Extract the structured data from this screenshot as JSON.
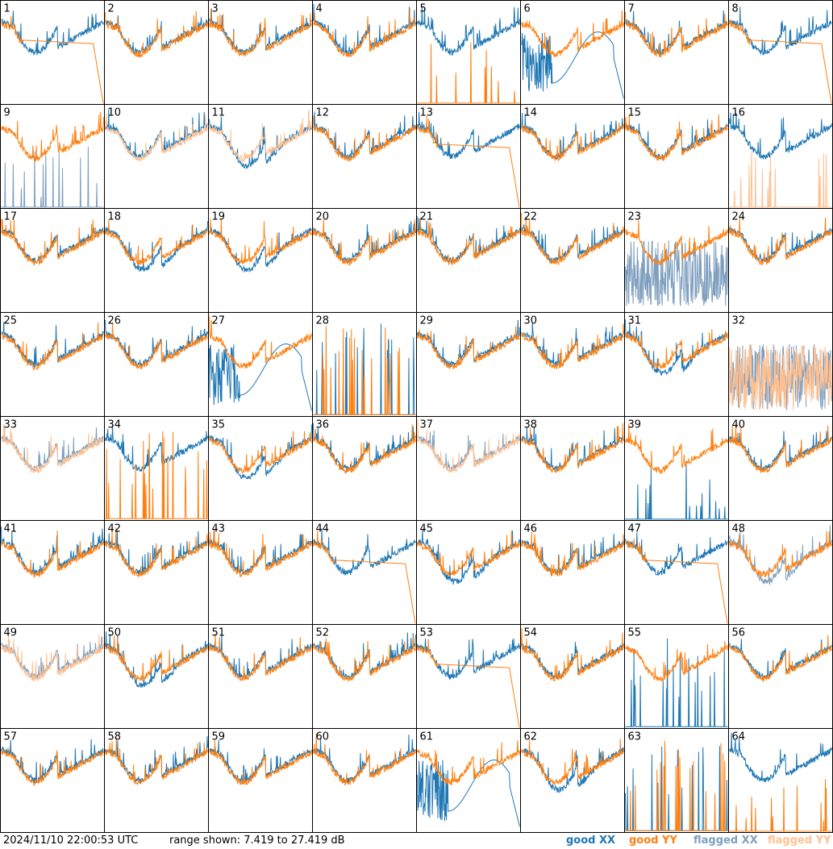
{
  "chart_data": {
    "type": "line",
    "title": "",
    "xlabel": "",
    "ylabel": "",
    "ylim": [
      7.419,
      27.419
    ],
    "grid": "8x8 small multiples",
    "panel_count": 64,
    "panels": [
      {
        "id": "1",
        "xx": "good",
        "yy": "good",
        "shape": "roll"
      },
      {
        "id": "2",
        "xx": "good",
        "yy": "good",
        "shape": "normal"
      },
      {
        "id": "3",
        "xx": "good",
        "yy": "good",
        "shape": "normal"
      },
      {
        "id": "4",
        "xx": "good",
        "yy": "good",
        "shape": "normal"
      },
      {
        "id": "5",
        "xx": "good",
        "yy": "good",
        "shape": "yy-spikes"
      },
      {
        "id": "6",
        "xx": "good",
        "yy": "good",
        "shape": "xx-wave"
      },
      {
        "id": "7",
        "xx": "good",
        "yy": "good",
        "shape": "normal"
      },
      {
        "id": "8",
        "xx": "good",
        "yy": "good",
        "shape": "yy-roll"
      },
      {
        "id": "9",
        "xx": "flagged",
        "yy": "good",
        "shape": "xx-spikes"
      },
      {
        "id": "10",
        "xx": "good",
        "yy": "flagged",
        "shape": "normal"
      },
      {
        "id": "11",
        "xx": "good",
        "yy": "flagged",
        "shape": "dip"
      },
      {
        "id": "12",
        "xx": "good",
        "yy": "good",
        "shape": "normal"
      },
      {
        "id": "13",
        "xx": "good",
        "yy": "good",
        "shape": "yy-roll"
      },
      {
        "id": "14",
        "xx": "good",
        "yy": "good",
        "shape": "normal"
      },
      {
        "id": "15",
        "xx": "good",
        "yy": "good",
        "shape": "normal"
      },
      {
        "id": "16",
        "xx": "good",
        "yy": "flagged",
        "shape": "yy-spikes"
      },
      {
        "id": "17",
        "xx": "good",
        "yy": "good",
        "shape": "normal"
      },
      {
        "id": "18",
        "xx": "good",
        "yy": "good",
        "shape": "dip"
      },
      {
        "id": "19",
        "xx": "good",
        "yy": "good",
        "shape": "dip"
      },
      {
        "id": "20",
        "xx": "good",
        "yy": "good",
        "shape": "normal"
      },
      {
        "id": "21",
        "xx": "good",
        "yy": "good",
        "shape": "normal"
      },
      {
        "id": "22",
        "xx": "good",
        "yy": "good",
        "shape": "normal"
      },
      {
        "id": "23",
        "xx": "flagged",
        "yy": "good",
        "shape": "xx-noise"
      },
      {
        "id": "24",
        "xx": "good",
        "yy": "good",
        "shape": "normal"
      },
      {
        "id": "25",
        "xx": "good",
        "yy": "good",
        "shape": "normal"
      },
      {
        "id": "26",
        "xx": "good",
        "yy": "good",
        "shape": "normal"
      },
      {
        "id": "27",
        "xx": "good",
        "yy": "good",
        "shape": "xx-wave"
      },
      {
        "id": "28",
        "xx": "good",
        "yy": "good",
        "shape": "dead"
      },
      {
        "id": "29",
        "xx": "good",
        "yy": "good",
        "shape": "normal"
      },
      {
        "id": "30",
        "xx": "good",
        "yy": "good",
        "shape": "normal"
      },
      {
        "id": "31",
        "xx": "good",
        "yy": "good",
        "shape": "dip"
      },
      {
        "id": "32",
        "xx": "flagged",
        "yy": "flagged",
        "shape": "noise"
      },
      {
        "id": "33",
        "xx": "flagged",
        "yy": "flagged",
        "shape": "normal"
      },
      {
        "id": "34",
        "xx": "good",
        "yy": "good",
        "shape": "yy-dead"
      },
      {
        "id": "35",
        "xx": "good",
        "yy": "good",
        "shape": "dip"
      },
      {
        "id": "36",
        "xx": "good",
        "yy": "good",
        "shape": "normal"
      },
      {
        "id": "37",
        "xx": "flagged",
        "yy": "flagged",
        "shape": "normal"
      },
      {
        "id": "38",
        "xx": "good",
        "yy": "good",
        "shape": "normal"
      },
      {
        "id": "39",
        "xx": "good",
        "yy": "good",
        "shape": "xx-spikes"
      },
      {
        "id": "40",
        "xx": "good",
        "yy": "good",
        "shape": "normal"
      },
      {
        "id": "41",
        "xx": "good",
        "yy": "good",
        "shape": "normal"
      },
      {
        "id": "42",
        "xx": "good",
        "yy": "good",
        "shape": "normal"
      },
      {
        "id": "43",
        "xx": "good",
        "yy": "good",
        "shape": "normal"
      },
      {
        "id": "44",
        "xx": "good",
        "yy": "good",
        "shape": "yy-roll"
      },
      {
        "id": "45",
        "xx": "good",
        "yy": "good",
        "shape": "dip"
      },
      {
        "id": "46",
        "xx": "good",
        "yy": "good",
        "shape": "normal"
      },
      {
        "id": "47",
        "xx": "good",
        "yy": "good",
        "shape": "yy-roll"
      },
      {
        "id": "48",
        "xx": "flagged",
        "yy": "good",
        "shape": "dip"
      },
      {
        "id": "49",
        "xx": "flagged",
        "yy": "flagged",
        "shape": "normal"
      },
      {
        "id": "50",
        "xx": "good",
        "yy": "good",
        "shape": "dip"
      },
      {
        "id": "51",
        "xx": "good",
        "yy": "good",
        "shape": "normal"
      },
      {
        "id": "52",
        "xx": "good",
        "yy": "good",
        "shape": "normal"
      },
      {
        "id": "53",
        "xx": "good",
        "yy": "good",
        "shape": "yy-roll"
      },
      {
        "id": "54",
        "xx": "good",
        "yy": "good",
        "shape": "normal"
      },
      {
        "id": "55",
        "xx": "good",
        "yy": "good",
        "shape": "xx-dead"
      },
      {
        "id": "56",
        "xx": "good",
        "yy": "good",
        "shape": "normal"
      },
      {
        "id": "57",
        "xx": "good",
        "yy": "good",
        "shape": "normal"
      },
      {
        "id": "58",
        "xx": "good",
        "yy": "good",
        "shape": "normal"
      },
      {
        "id": "59",
        "xx": "good",
        "yy": "good",
        "shape": "normal"
      },
      {
        "id": "60",
        "xx": "good",
        "yy": "good",
        "shape": "normal"
      },
      {
        "id": "61",
        "xx": "good",
        "yy": "good",
        "shape": "xx-wave"
      },
      {
        "id": "62",
        "xx": "good",
        "yy": "good",
        "shape": "dip"
      },
      {
        "id": "63",
        "xx": "good",
        "yy": "good",
        "shape": "dead"
      },
      {
        "id": "64",
        "xx": "good",
        "yy": "good",
        "shape": "yy-spikes"
      }
    ]
  },
  "footer": {
    "timestamp": "2024/11/10 22:00:53 UTC",
    "range_text": "range shown: 7.419 to 27.419 dB"
  },
  "legend": [
    {
      "key": "good_xx",
      "label": "good XX",
      "color": "#1f77b4"
    },
    {
      "key": "good_yy",
      "label": "good YY",
      "color": "#ff7f0e"
    },
    {
      "key": "flagged_xx",
      "label": "flagged XX",
      "color": "#7f9fbf"
    },
    {
      "key": "flagged_yy",
      "label": "flagged YY",
      "color": "#ffbf8f"
    }
  ],
  "colors": {
    "good_xx": "#1f77b4",
    "good_yy": "#ff7f0e",
    "flagged_xx": "#7f9fbf",
    "flagged_yy": "#ffbf8f"
  }
}
